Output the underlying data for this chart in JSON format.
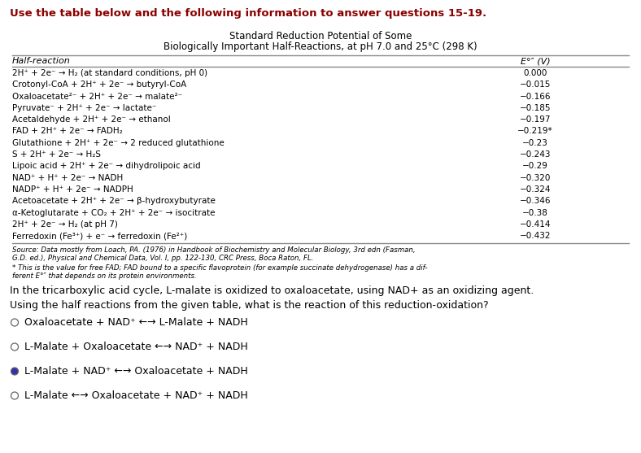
{
  "header": "Use the table below and the following information to answer questions 15-19.",
  "table_title_line1": "Standard Reduction Potential of Some",
  "table_title_line2": "Biologically Important Half-Reactions, at pH 7.0 and 25°C (298 K)",
  "col_header_left": "Half-reaction",
  "col_header_right": "E°″ (V)",
  "rows": [
    [
      "2H⁺ + 2e⁻ → H₂ (at standard conditions, pH 0)",
      "0.000"
    ],
    [
      "Crotonyl-CoA + 2H⁺ + 2e⁻ → butyryl-CoA",
      "−0.015"
    ],
    [
      "Oxaloacetate²⁻ + 2H⁺ + 2e⁻ → malate²⁻",
      "−0.166"
    ],
    [
      "Pyruvate⁻ + 2H⁺ + 2e⁻ → lactate⁻",
      "−0.185"
    ],
    [
      "Acetaldehyde + 2H⁺ + 2e⁻ → ethanol",
      "−0.197"
    ],
    [
      "FAD + 2H⁺ + 2e⁻ → FADH₂",
      "−0.219*"
    ],
    [
      "Glutathione + 2H⁺ + 2e⁻ → 2 reduced glutathione",
      "−0.23"
    ],
    [
      "S + 2H⁺ + 2e⁻ → H₂S",
      "−0.243"
    ],
    [
      "Lipoic acid + 2H⁺ + 2e⁻ → dihydrolipoic acid",
      "−0.29"
    ],
    [
      "NAD⁺ + H⁺ + 2e⁻ → NADH",
      "−0.320"
    ],
    [
      "NADP⁺ + H⁺ + 2e⁻ → NADPH",
      "−0.324"
    ],
    [
      "Acetoacetate + 2H⁺ + 2e⁻ → β-hydroxybutyrate",
      "−0.346"
    ],
    [
      "α-Ketoglutarate + CO₂ + 2H⁺ + 2e⁻ → isocitrate",
      "−0.38"
    ],
    [
      "2H⁺ + 2e⁻ → H₂ (at pH 7)",
      "−0.414"
    ],
    [
      "Ferredoxin (Fe³⁺) + e⁻ → ferredoxin (Fe²⁺)",
      "−0.432"
    ]
  ],
  "footnote1": "Source: Data mostly from Loach, PA. (1976) in Handbook of Biochemistry and Molecular Biology, 3rd edn (Fasman,",
  "footnote2": "G.D. ed.), Physical and Chemical Data, Vol. I, pp. 122-130, CRC Press, Boca Raton, FL.",
  "footnote3": "* This is the value for free FAD; FAD bound to a specific flavoprotein (for example succinate dehydrogenase) has a dif-",
  "footnote4": "ferent E°″ that depends on its protein environments.",
  "question_line1": "In the tricarboxylic acid cycle, L-malate is oxidized to oxaloacetate, using NAD+ as an oxidizing agent.",
  "question_line2": "Using the half reactions from the given table, what is the reaction of this reduction-oxidation?",
  "options": [
    "Oxaloacetate + NAD⁺ ←→ L-Malate + NADH",
    "L-Malate + Oxaloacetate ←→ NAD⁺ + NADH",
    "L-Malate + NAD⁺ ←→ Oxaloacetate + NADH",
    "L-Malate ←→ Oxaloacetate + NAD⁺ + NADH"
  ],
  "correct_option_index": 2,
  "header_color": "#8b0000",
  "bg_color": "#ffffff",
  "text_color": "#000000",
  "table_line_color": "#888888",
  "radio_filled_color": "#3333aa",
  "radio_empty_color": "#ffffff",
  "radio_edge_color": "#666666"
}
